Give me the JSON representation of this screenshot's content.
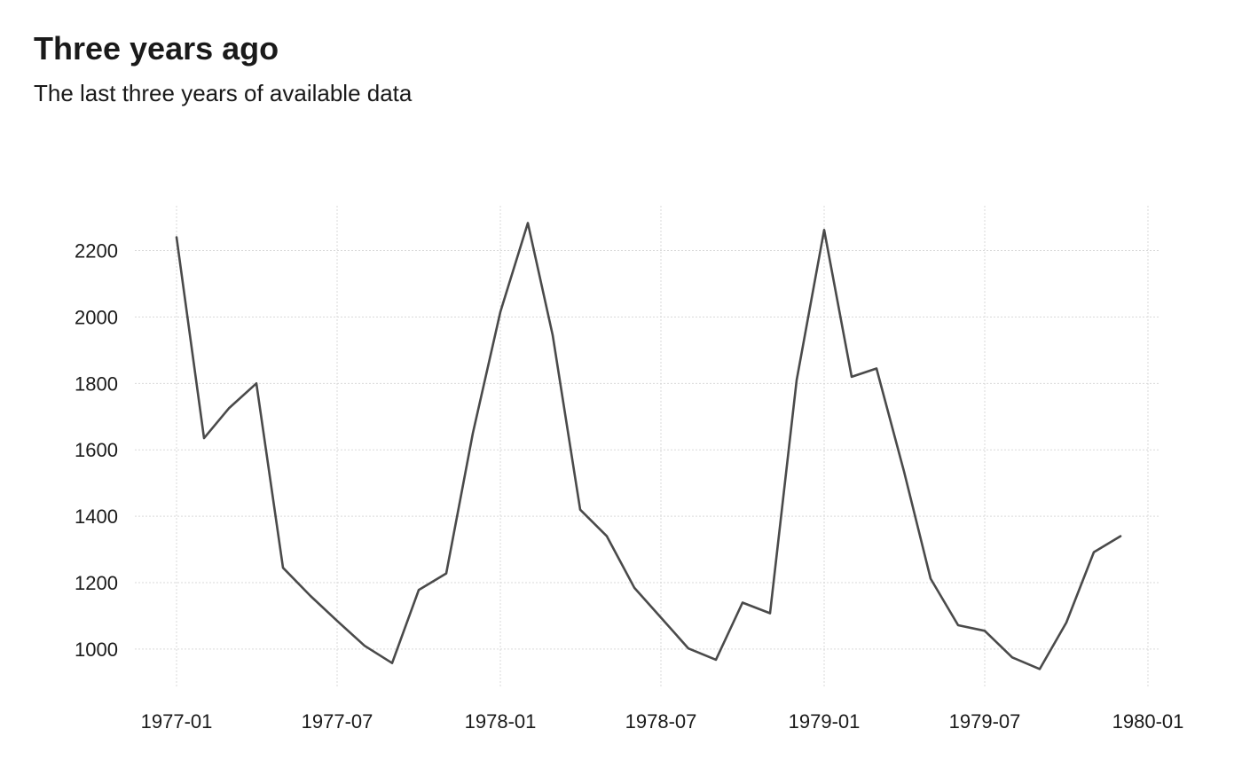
{
  "chart_data": {
    "type": "line",
    "title": "Three years ago",
    "subtitle": "The last three years of available data",
    "xlabel": "",
    "ylabel": "",
    "x_type": "date",
    "x_tick_labels": [
      "1977-01",
      "1977-07",
      "1978-01",
      "1978-07",
      "1979-01",
      "1979-07",
      "1980-01"
    ],
    "x_ticks": [
      "1977-01-01",
      "1977-07-01",
      "1978-01-01",
      "1978-07-01",
      "1979-01-01",
      "1979-07-01",
      "1980-01-01"
    ],
    "y_ticks": [
      1000,
      1200,
      1400,
      1600,
      1800,
      2000,
      2200
    ],
    "xlim": [
      "1976-11-15",
      "1980-01-15"
    ],
    "ylim": [
      885,
      2335
    ],
    "grid": "major, dotted",
    "legend": "none",
    "line_color": "#4a4a4a",
    "series": [
      {
        "x": [
          "1977-01-01",
          "1977-02-01",
          "1977-03-01",
          "1977-04-01",
          "1977-05-01",
          "1977-06-01",
          "1977-07-01",
          "1977-08-01",
          "1977-09-01",
          "1977-10-01",
          "1977-11-01",
          "1977-12-01",
          "1978-01-01",
          "1978-02-01",
          "1978-03-01",
          "1978-04-01",
          "1978-05-01",
          "1978-06-01",
          "1978-07-01",
          "1978-08-01",
          "1978-09-01",
          "1978-10-01",
          "1978-11-01",
          "1978-12-01",
          "1979-01-01",
          "1979-02-01",
          "1979-03-01",
          "1979-04-01",
          "1979-05-01",
          "1979-06-01",
          "1979-07-01",
          "1979-08-01",
          "1979-09-01",
          "1979-10-01",
          "1979-11-01",
          "1979-12-01"
        ],
        "values": [
          2240,
          1635,
          1725,
          1800,
          1245,
          1160,
          1085,
          1010,
          958,
          1178,
          1228,
          1650,
          2015,
          2283,
          1945,
          1420,
          1340,
          1185,
          1095,
          1002,
          968,
          1140,
          1108,
          1810,
          2262,
          1820,
          1845,
          1535,
          1212,
          1072,
          1055,
          975,
          940,
          1080,
          1292,
          1340
        ]
      }
    ]
  }
}
